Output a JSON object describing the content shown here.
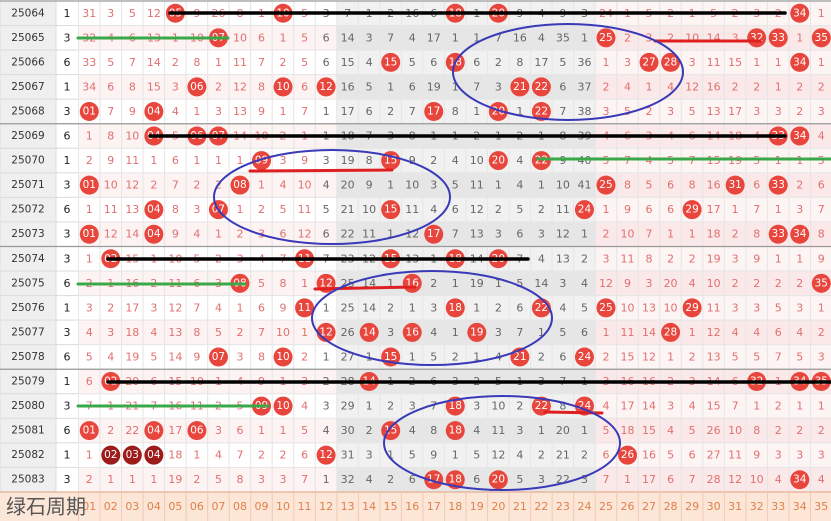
{
  "rows": [
    {
      "period": "25064",
      "group": "1",
      "cells": [
        "31",
        "3",
        "5",
        "12",
        {
          "hit": "05"
        },
        "9",
        "26",
        "8",
        "1",
        {
          "hit": "10"
        },
        "5",
        "3",
        "7",
        "1",
        "2",
        "16",
        "6",
        {
          "hit": "18"
        },
        "1",
        {
          "hit": "20"
        },
        "9",
        "4",
        "9",
        "3",
        "24",
        "1",
        "5",
        "2",
        "1",
        "5",
        "2",
        "3",
        "2",
        {
          "hit": "34"
        },
        "1"
      ]
    },
    {
      "period": "25065",
      "group": "3",
      "cells": [
        "32",
        "4",
        "6",
        "13",
        "1",
        "10",
        {
          "hit": "07"
        },
        "10",
        "6",
        "1",
        "5",
        "6",
        "14",
        "3",
        "7",
        "4",
        "17",
        "1",
        "1",
        "7",
        "16",
        "4",
        "35",
        "1",
        {
          "hit": "25"
        },
        "2",
        "3",
        "2",
        "10",
        "14",
        "3",
        {
          "hit": "32"
        },
        {
          "hit": "33"
        },
        "1",
        {
          "hit": "35"
        }
      ]
    },
    {
      "period": "25066",
      "group": "6",
      "cells": [
        "33",
        "5",
        "7",
        "14",
        "2",
        "8",
        "1",
        "11",
        "7",
        "2",
        "5",
        "6",
        "15",
        "4",
        {
          "hit": "15"
        },
        "5",
        "6",
        {
          "hit": "18"
        },
        "6",
        "2",
        "8",
        "17",
        "5",
        "36",
        "1",
        "3",
        {
          "hit": "27"
        },
        {
          "hit": "28"
        },
        "3",
        "11",
        "15",
        "1",
        "1",
        {
          "hit": "34"
        },
        "1"
      ]
    },
    {
      "period": "25067",
      "group": "1",
      "cells": [
        "34",
        "6",
        "8",
        "15",
        "3",
        {
          "hit": "06"
        },
        "2",
        "12",
        "8",
        {
          "hit": "10"
        },
        "6",
        {
          "hit": "12"
        },
        "16",
        "5",
        "1",
        "6",
        "19",
        "1",
        "7",
        "3",
        {
          "hit": "21"
        },
        {
          "hit": "22"
        },
        "6",
        "37",
        "2",
        "4",
        "1",
        "4",
        "12",
        "16",
        "2",
        "2",
        "1",
        "2",
        "2"
      ]
    },
    {
      "period": "25068",
      "group": "3",
      "cells": [
        {
          "hit": "01"
        },
        "7",
        "9",
        {
          "hit": "04"
        },
        "4",
        "1",
        "3",
        "13",
        "9",
        "1",
        "7",
        "1",
        "17",
        "6",
        "2",
        "7",
        {
          "hit": "17"
        },
        "8",
        "1",
        {
          "hit": "20"
        },
        "1",
        {
          "hit": "22"
        },
        "7",
        "38",
        "3",
        "5",
        "2",
        "3",
        "5",
        "13",
        "17",
        "3",
        "3",
        "2",
        "3"
      ]
    },
    {
      "period": "25069",
      "group": "6",
      "cells": [
        "1",
        "8",
        "10",
        {
          "hit": "04"
        },
        "5",
        {
          "hit": "06"
        },
        {
          "hit": "07"
        },
        "14",
        "10",
        "2",
        "1",
        "1",
        "18",
        "7",
        "3",
        "8",
        "1",
        "1",
        "2",
        "1",
        "2",
        "1",
        "8",
        "39",
        "4",
        "6",
        "3",
        "4",
        "6",
        "14",
        "18",
        "4",
        {
          "hit": "33"
        },
        {
          "hit": "34"
        },
        "4"
      ]
    },
    {
      "period": "25070",
      "group": "1",
      "cells": [
        "2",
        "9",
        "11",
        "1",
        "6",
        "1",
        "1",
        "1",
        {
          "hit": "09"
        },
        "3",
        "9",
        "3",
        "19",
        "8",
        {
          "hit": "15"
        },
        "9",
        "2",
        "4",
        "10",
        {
          "hit": "20"
        },
        "4",
        {
          "hit": "22"
        },
        "9",
        "40",
        "5",
        "7",
        "4",
        "5",
        "7",
        "15",
        "19",
        "5",
        "1",
        "1",
        "5"
      ]
    },
    {
      "period": "25071",
      "group": "3",
      "cells": [
        {
          "hit": "01"
        },
        "10",
        "12",
        "2",
        "7",
        "2",
        "2",
        {
          "hit": "08"
        },
        "1",
        "4",
        "10",
        "4",
        "20",
        "9",
        "1",
        "10",
        "3",
        "5",
        "11",
        "1",
        "4",
        "1",
        "10",
        "41",
        {
          "hit": "25"
        },
        "8",
        "5",
        "6",
        "8",
        "16",
        {
          "hit": "31"
        },
        "6",
        {
          "hit": "33"
        },
        "2",
        "6"
      ]
    },
    {
      "period": "25072",
      "group": "6",
      "cells": [
        "1",
        "11",
        "13",
        {
          "hit": "04"
        },
        "8",
        "3",
        {
          "hit": "07"
        },
        "1",
        "2",
        "5",
        "11",
        "5",
        "21",
        "10",
        {
          "hit": "15"
        },
        "11",
        "4",
        "6",
        "12",
        "2",
        "5",
        "2",
        "11",
        {
          "hit": "24"
        },
        "1",
        "9",
        "6",
        "6",
        {
          "hit": "29"
        },
        "17",
        "1",
        "7",
        "1",
        "3",
        "7"
      ]
    },
    {
      "period": "25073",
      "group": "3",
      "cells": [
        {
          "hit": "01"
        },
        "12",
        "14",
        {
          "hit": "04"
        },
        "9",
        "4",
        "1",
        "2",
        "3",
        "6",
        "12",
        "6",
        "22",
        "11",
        "1",
        "12",
        {
          "hit": "17"
        },
        "7",
        "13",
        "3",
        "6",
        "3",
        "12",
        "1",
        "2",
        "10",
        "7",
        "1",
        "1",
        "18",
        "2",
        "8",
        {
          "hit": "33"
        },
        {
          "hit": "34"
        },
        "8"
      ]
    },
    {
      "period": "25074",
      "group": "3",
      "cells": [
        "1",
        {
          "hit": "02"
        },
        "15",
        "1",
        "10",
        "5",
        "2",
        "3",
        "4",
        "7",
        {
          "hit": "11"
        },
        "7",
        "23",
        "12",
        {
          "hit": "15"
        },
        "13",
        "1",
        {
          "hit": "18"
        },
        "14",
        {
          "hit": "20"
        },
        "7",
        "4",
        "13",
        "2",
        "3",
        "11",
        "8",
        "2",
        "2",
        "19",
        "3",
        "9",
        "1",
        "1",
        "9"
      ]
    },
    {
      "period": "25075",
      "group": "6",
      "cells": [
        "2",
        "1",
        "16",
        "2",
        "11",
        "6",
        "3",
        {
          "hit": "08"
        },
        "5",
        "8",
        "1",
        {
          "hit": "12"
        },
        "25",
        "14",
        "1",
        {
          "hit": "16"
        },
        "2",
        "1",
        "19",
        "1",
        "5",
        "14",
        "3",
        "4",
        "12",
        "9",
        "3",
        "20",
        "4",
        "10",
        "2",
        "2",
        "2",
        "2",
        {
          "hit": "35"
        }
      ]
    },
    {
      "period": "25076",
      "group": "1",
      "cells": [
        "3",
        "2",
        "17",
        "3",
        "12",
        "7",
        "4",
        "1",
        "6",
        "9",
        {
          "hit": "11"
        },
        "1",
        "25",
        "14",
        "2",
        "1",
        "3",
        {
          "hit": "18"
        },
        "1",
        "2",
        "6",
        {
          "hit": "22"
        },
        "4",
        "5",
        {
          "hit": "25"
        },
        "10",
        "13",
        "10",
        {
          "hit": "29"
        },
        "11",
        "3",
        "3",
        "5",
        "3",
        "1"
      ]
    },
    {
      "period": "25077",
      "group": "3",
      "cells": [
        "4",
        "3",
        "18",
        "4",
        "13",
        "8",
        "5",
        "2",
        "7",
        "10",
        "1",
        {
          "hit": "12"
        },
        "26",
        {
          "hit": "14"
        },
        "3",
        {
          "hit": "16"
        },
        "4",
        "1",
        {
          "hit": "19"
        },
        "3",
        "7",
        "1",
        "5",
        "6",
        "1",
        "11",
        "14",
        {
          "hit": "28"
        },
        "1",
        "12",
        "4",
        "4",
        "6",
        "4",
        "2"
      ]
    },
    {
      "period": "25078",
      "group": "6",
      "cells": [
        "5",
        "4",
        "19",
        "5",
        "14",
        "9",
        {
          "hit": "07"
        },
        "3",
        "8",
        {
          "hit": "10"
        },
        "2",
        "1",
        "27",
        "1",
        {
          "hit": "15"
        },
        "1",
        "5",
        "2",
        "1",
        "4",
        {
          "hit": "21"
        },
        "2",
        "6",
        {
          "hit": "24"
        },
        "2",
        "15",
        "12",
        "1",
        "2",
        "13",
        "5",
        "5",
        "7",
        "5",
        "3"
      ]
    },
    {
      "period": "25079",
      "group": "1",
      "cells": [
        "6",
        {
          "hit": "02"
        },
        "20",
        "6",
        "15",
        "10",
        "1",
        "4",
        "9",
        "1",
        "3",
        "2",
        "28",
        {
          "hit": "14"
        },
        "1",
        "2",
        "6",
        "3",
        "2",
        "5",
        "1",
        "3",
        "7",
        "1",
        "3",
        "16",
        "16",
        "2",
        "3",
        "14",
        "6",
        {
          "hit": "32"
        },
        "1",
        {
          "hit": "34"
        },
        {
          "hit": "35"
        }
      ]
    },
    {
      "period": "25080",
      "group": "3",
      "cells": [
        "7",
        "1",
        "21",
        "7",
        "16",
        "11",
        "2",
        "5",
        {
          "hit": "09"
        },
        {
          "hit": "10"
        },
        "4",
        "3",
        "29",
        "1",
        "2",
        "3",
        "7",
        {
          "hit": "18"
        },
        "3",
        "10",
        "2",
        {
          "hit": "22"
        },
        "8",
        {
          "hit": "24"
        },
        "4",
        "17",
        "14",
        "3",
        "4",
        "15",
        "7",
        "1",
        "2",
        "1",
        "1"
      ]
    },
    {
      "period": "25081",
      "group": "6",
      "cells": [
        {
          "hit": "01"
        },
        "2",
        "22",
        {
          "hit": "04"
        },
        "17",
        {
          "hit": "06"
        },
        "3",
        "6",
        "1",
        "1",
        "5",
        "4",
        "30",
        "2",
        {
          "hit": "15"
        },
        "4",
        "8",
        {
          "hit": "18"
        },
        "4",
        "11",
        "3",
        "1",
        "20",
        "1",
        "5",
        "18",
        "15",
        "4",
        "5",
        "26",
        "10",
        "8",
        "2",
        "2",
        "2"
      ]
    },
    {
      "period": "25082",
      "group": "1",
      "cells": [
        "1",
        {
          "hit": "02"
        },
        {
          "hit": "03"
        },
        {
          "hit": "04"
        },
        "18",
        "1",
        "4",
        "7",
        "2",
        "2",
        "6",
        {
          "hit": "12"
        },
        "31",
        "3",
        "1",
        "5",
        "9",
        "1",
        "5",
        "12",
        "4",
        "2",
        "21",
        "2",
        "6",
        {
          "hit": "26"
        },
        "16",
        "5",
        "6",
        "27",
        "11",
        "9",
        "3",
        "3",
        "3"
      ]
    },
    {
      "period": "25083",
      "group": "3",
      "cells": [
        "2",
        "1",
        "1",
        "1",
        "19",
        "2",
        "5",
        "8",
        "3",
        "3",
        "7",
        "1",
        "32",
        "4",
        "2",
        "6",
        {
          "hit": "17"
        },
        {
          "hit": "18"
        },
        "6",
        {
          "hit": "20"
        },
        "5",
        "3",
        "22",
        "3",
        "7",
        "1",
        "17",
        "6",
        "7",
        "28",
        "12",
        "10",
        "4",
        {
          "hit": "34"
        },
        "4"
      ]
    }
  ],
  "footer": [
    "01",
    "02",
    "03",
    "04",
    "05",
    "06",
    "07",
    "08",
    "09",
    "10",
    "11",
    "12",
    "13",
    "14",
    "15",
    "16",
    "17",
    "18",
    "19",
    "20",
    "21",
    "22",
    "23",
    "24",
    "25",
    "26",
    "27",
    "28",
    "29",
    "30",
    "31",
    "32",
    "33",
    "34",
    "35"
  ],
  "watermark": "绿石周期"
}
